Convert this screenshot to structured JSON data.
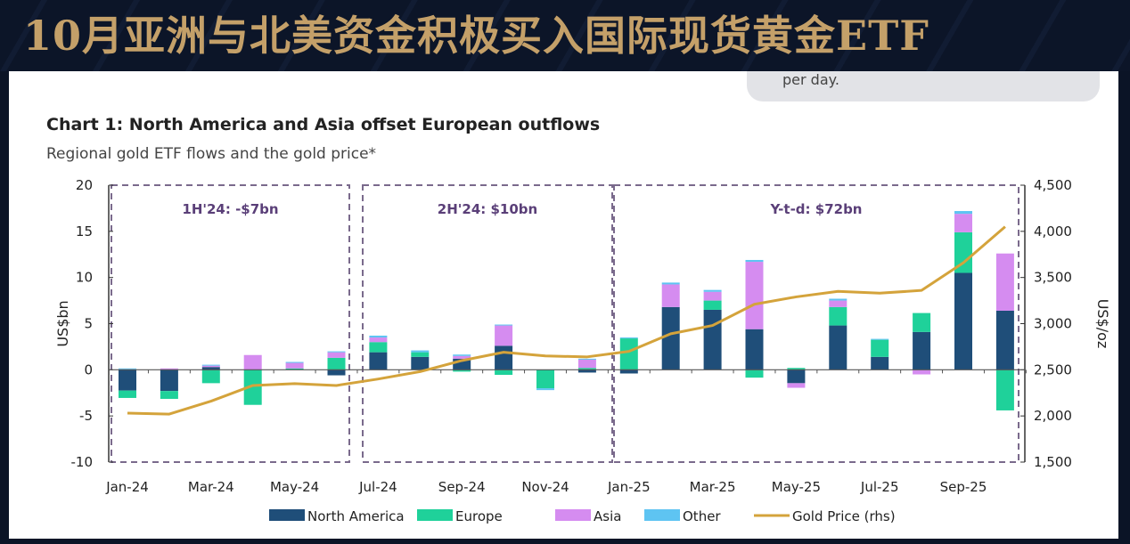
{
  "banner": {
    "title": "10月亚洲与北美资金积极买入国际现货黄金ETF"
  },
  "bubble": {
    "text": "per day."
  },
  "chart_data": {
    "type": "bar",
    "title": "Chart 1: North America and Asia offset European outflows",
    "subtitle": "Regional gold ETF flows and the gold price*",
    "ylabel": "US$bn",
    "y2label": "US$/oz",
    "ylim": [
      -10,
      20
    ],
    "y2lim": [
      1500,
      4500
    ],
    "yticks": [
      20,
      15,
      10,
      5,
      0,
      -5,
      -10
    ],
    "y2ticks": [
      "4,500",
      "4,000",
      "3,500",
      "3,000",
      "2,500",
      "2,000",
      "1,500"
    ],
    "y2tick_values": [
      4500,
      4000,
      3500,
      3000,
      2500,
      2000,
      1500
    ],
    "categories": [
      "Jan-24",
      "Feb-24",
      "Mar-24",
      "Apr-24",
      "May-24",
      "Jun-24",
      "Jul-24",
      "Aug-24",
      "Sep-24",
      "Oct-24",
      "Nov-24",
      "Dec-24",
      "Jan-25",
      "Feb-25",
      "Mar-25",
      "Apr-25",
      "May-25",
      "Jun-25",
      "Jul-25",
      "Aug-25",
      "Sep-25",
      "Oct-25"
    ],
    "xtick_labels": [
      "Jan-24",
      "Mar-24",
      "May-24",
      "Jul-24",
      "Sep-24",
      "Nov-24",
      "Jan-25",
      "Mar-25",
      "May-25",
      "Jul-25",
      "Sep-25"
    ],
    "stacked": true,
    "series": [
      {
        "name": "North America",
        "color": "#1f4e79",
        "values": [
          -2.25,
          -2.3,
          0.3,
          0,
          0,
          -0.6,
          1.9,
          1.4,
          1.2,
          2.6,
          0,
          -0.3,
          -0.4,
          6.8,
          6.5,
          4.4,
          -1.45,
          4.8,
          1.4,
          4.1,
          10.5,
          6.4
        ]
      },
      {
        "name": "Europe",
        "color": "#1fd19a",
        "values": [
          -0.8,
          -0.85,
          -1.45,
          -3.8,
          0.15,
          1.3,
          1.1,
          0.5,
          -0.2,
          -0.55,
          -2.0,
          0.2,
          3.4,
          0,
          1.0,
          -0.85,
          0.2,
          2.0,
          1.85,
          2.05,
          4.4,
          -4.4
        ]
      },
      {
        "name": "Asia",
        "color": "#d58cf0",
        "values": [
          0.05,
          0.15,
          0.15,
          1.6,
          0.6,
          0.6,
          0.5,
          0,
          0.3,
          2.2,
          0,
          0.9,
          0,
          2.45,
          0.95,
          7.3,
          -0.5,
          0.7,
          0,
          -0.5,
          2.0,
          6.2
        ]
      },
      {
        "name": "Other",
        "color": "#5ec4f2",
        "values": [
          0.1,
          0,
          0.1,
          0,
          0.1,
          0.1,
          0.2,
          0.2,
          0.15,
          0.1,
          -0.2,
          0.1,
          0.1,
          0.2,
          0.2,
          0.2,
          0,
          0.2,
          0.1,
          0,
          0.3,
          0
        ]
      }
    ],
    "line": {
      "name": "Gold Price (rhs)",
      "color": "#d4a33b",
      "axis": "right",
      "values": [
        2030,
        2020,
        2160,
        2330,
        2350,
        2330,
        2400,
        2480,
        2600,
        2690,
        2650,
        2640,
        2700,
        2890,
        2980,
        3210,
        3290,
        3350,
        3330,
        3360,
        3660,
        4050
      ]
    },
    "annotations": [
      {
        "text": "1H'24: -$7bn",
        "from": "Jan-24",
        "to": "Jun-24"
      },
      {
        "text": "2H'24: $10bn",
        "from": "Jul-24",
        "to": "Dec-24"
      },
      {
        "text": "Y-t-d: $72bn",
        "from": "Jan-25",
        "to": "Oct-25"
      }
    ],
    "legend": "bottom",
    "grid": false
  }
}
